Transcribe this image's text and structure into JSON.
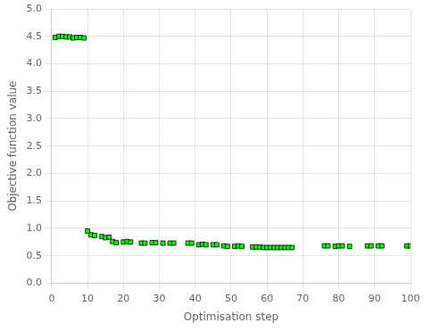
{
  "chart_data": {
    "type": "scatter",
    "xlabel": "Optimisation step",
    "ylabel": "Objective function value",
    "xlim": [
      0,
      100
    ],
    "ylim": [
      0,
      5
    ],
    "xticks": [
      0,
      10,
      20,
      30,
      40,
      50,
      60,
      70,
      80,
      90,
      100
    ],
    "yticks": [
      {
        "value": 0,
        "label": "0.0"
      },
      0.5,
      {
        "value": 1.0,
        "label": "1.0"
      },
      1.5,
      {
        "value": 2.0,
        "label": "2.0"
      },
      2.5,
      {
        "value": 3.0,
        "label": "3.0"
      },
      3.5,
      {
        "value": 4.0,
        "label": "4.0"
      },
      4.5,
      {
        "value": 5.0,
        "label": "5.0"
      }
    ],
    "grid": true,
    "color": "#00FF00",
    "marker": "square",
    "x": [
      1,
      2,
      3,
      4,
      5,
      6,
      7,
      8,
      9,
      10,
      11,
      12,
      14,
      15,
      16,
      17,
      18,
      20,
      21,
      22,
      25,
      26,
      28,
      29,
      31,
      33,
      34,
      38,
      39,
      41,
      42,
      43,
      45,
      46,
      48,
      49,
      51,
      52,
      53,
      56,
      57,
      58,
      59,
      60,
      61,
      62,
      63,
      64,
      65,
      66,
      67,
      76,
      77,
      79,
      80,
      81,
      83,
      88,
      89,
      91,
      92,
      99,
      100
    ],
    "values": [
      4.48,
      4.5,
      4.5,
      4.49,
      4.49,
      4.47,
      4.48,
      4.48,
      4.47,
      0.95,
      0.88,
      0.87,
      0.85,
      0.83,
      0.84,
      0.76,
      0.74,
      0.75,
      0.76,
      0.75,
      0.73,
      0.73,
      0.74,
      0.74,
      0.73,
      0.73,
      0.73,
      0.73,
      0.73,
      0.7,
      0.71,
      0.7,
      0.7,
      0.7,
      0.68,
      0.67,
      0.67,
      0.68,
      0.67,
      0.66,
      0.66,
      0.66,
      0.65,
      0.65,
      0.65,
      0.65,
      0.65,
      0.65,
      0.65,
      0.65,
      0.65,
      0.68,
      0.68,
      0.67,
      0.68,
      0.68,
      0.67,
      0.68,
      0.68,
      0.68,
      0.68,
      0.68,
      0.68
    ]
  }
}
